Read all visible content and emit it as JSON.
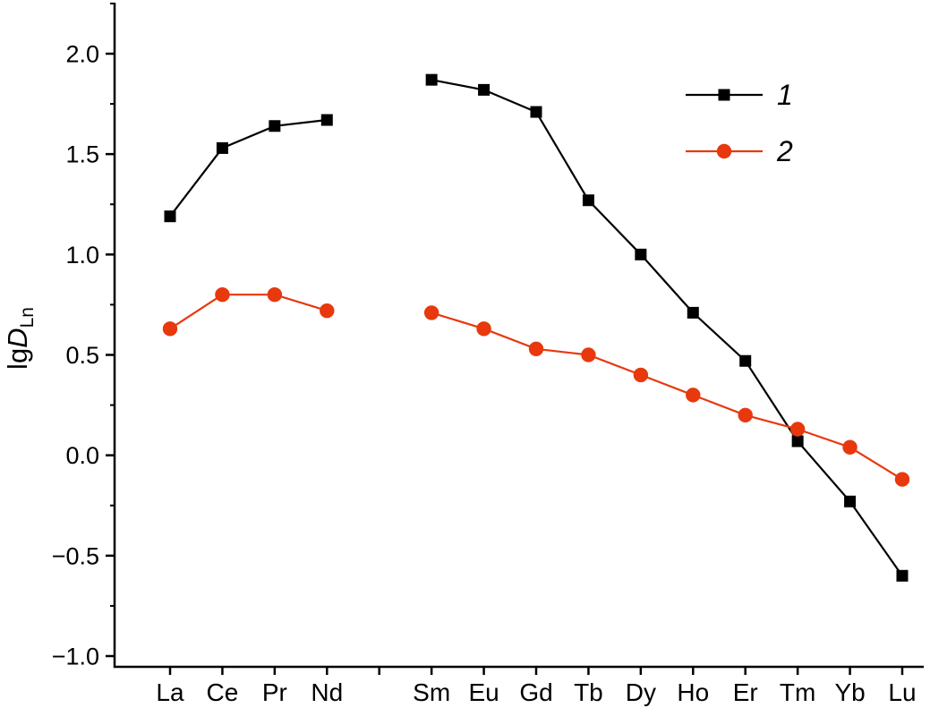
{
  "chart_data": {
    "type": "line",
    "title": "",
    "background": "#ffffff",
    "axes_color": "#000000",
    "text_color": "#000000",
    "grid": false,
    "ylabel_parts": {
      "prefix": "lg",
      "symbol": "D",
      "subscript": "Ln"
    },
    "ylim": [
      -1.05,
      2.25
    ],
    "yticks": [
      -1.0,
      -0.5,
      0.0,
      0.5,
      1.0,
      1.5,
      2.0
    ],
    "ytick_labels": [
      "−1.0",
      "−0.5",
      "0.0",
      "0.5",
      "1.0",
      "1.5",
      "2.0"
    ],
    "yminor_step": 0.25,
    "categories": [
      "La",
      "Ce",
      "Pr",
      "Nd",
      "Sm",
      "Eu",
      "Gd",
      "Tb",
      "Dy",
      "Ho",
      "Er",
      "Tm",
      "Yb",
      "Lu"
    ],
    "x_slots": 15,
    "x_positions": [
      0,
      1,
      2,
      3,
      5,
      6,
      7,
      8,
      9,
      10,
      11,
      12,
      13,
      14
    ],
    "gap_after_category": "Nd",
    "series": [
      {
        "name": "1",
        "color": "#000000",
        "marker": "square",
        "values": [
          1.19,
          1.53,
          1.64,
          1.67,
          1.87,
          1.82,
          1.71,
          1.27,
          1.0,
          0.71,
          0.47,
          0.07,
          -0.23,
          -0.6
        ]
      },
      {
        "name": "2",
        "color": "#e8380d",
        "marker": "circle",
        "values": [
          0.63,
          0.8,
          0.8,
          0.72,
          0.71,
          0.63,
          0.53,
          0.5,
          0.4,
          0.3,
          0.2,
          0.13,
          0.04,
          -0.12
        ]
      }
    ],
    "legend": {
      "position": "top-right",
      "items": [
        {
          "label": "1"
        },
        {
          "label": "2"
        }
      ]
    }
  }
}
